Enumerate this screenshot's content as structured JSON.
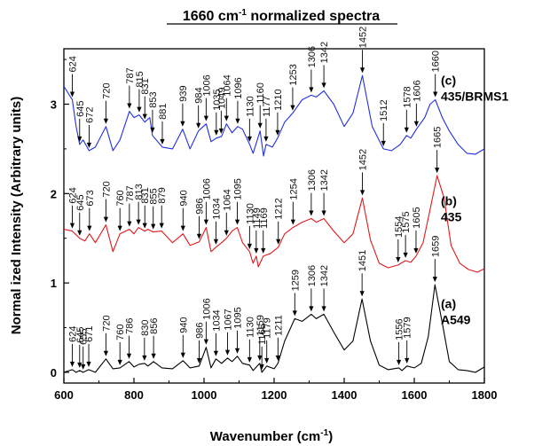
{
  "chart_data": {
    "type": "line",
    "title": "1660 cm⁻¹ normalized spectra",
    "title_parts": {
      "prefix": "1660 cm",
      "sup": "-1",
      "suffix": " normalized spectra"
    },
    "xlabel": "Wavenumber (cm⁻¹)",
    "xlabel_parts": {
      "prefix": "Wavenumber (cm",
      "sup": "-1",
      "suffix": ")"
    },
    "ylabel": "Normal ized Intensity (Arbitrary units)",
    "xlim": [
      600,
      1800
    ],
    "ylim": [
      -0.12,
      3.62
    ],
    "xticks": [
      600,
      800,
      1000,
      1200,
      1400,
      1600,
      1800
    ],
    "yticks": [
      0,
      1,
      2,
      3
    ],
    "grid": false,
    "legend": "none",
    "series": [
      {
        "label_lines": [
          "(a)",
          "A549"
        ],
        "color": "#000000",
        "baseline": 0.0,
        "x": [
          600,
          624,
          635,
          645,
          655,
          671,
          690,
          720,
          740,
          760,
          786,
          800,
          815,
          830,
          840,
          856,
          880,
          910,
          940,
          960,
          986,
          1006,
          1020,
          1034,
          1050,
          1067,
          1080,
          1095,
          1110,
          1130,
          1140,
          1159,
          1165,
          1179,
          1200,
          1211,
          1230,
          1259,
          1280,
          1306,
          1320,
          1342,
          1370,
          1400,
          1425,
          1451,
          1475,
          1500,
          1525,
          1556,
          1565,
          1579,
          1600,
          1620,
          1640,
          1659,
          1680,
          1700,
          1725,
          1750,
          1775,
          1800
        ],
        "y": [
          0.0,
          0.03,
          0.0,
          0.02,
          0.0,
          0.03,
          0.0,
          0.15,
          0.04,
          0.05,
          0.12,
          0.06,
          0.09,
          0.1,
          0.07,
          0.12,
          0.05,
          0.04,
          0.13,
          0.05,
          0.07,
          0.28,
          0.05,
          0.15,
          0.1,
          0.16,
          0.12,
          0.18,
          0.1,
          0.08,
          0.02,
          0.1,
          0.0,
          0.07,
          0.04,
          0.1,
          0.35,
          0.6,
          0.57,
          0.65,
          0.6,
          0.65,
          0.45,
          0.25,
          0.35,
          0.82,
          0.35,
          0.08,
          0.03,
          0.05,
          0.02,
          0.07,
          0.05,
          0.1,
          0.4,
          0.98,
          0.55,
          0.12,
          0.03,
          0.02,
          0.0,
          0.06
        ]
      },
      {
        "label_lines": [
          "(b)",
          "435"
        ],
        "color": "#e0191c",
        "baseline": 1.15,
        "x": [
          600,
          624,
          645,
          660,
          673,
          690,
          720,
          740,
          760,
          787,
          800,
          813,
          831,
          840,
          855,
          879,
          910,
          940,
          960,
          986,
          1006,
          1020,
          1034,
          1050,
          1064,
          1080,
          1095,
          1110,
          1130,
          1140,
          1149,
          1155,
          1169,
          1190,
          1212,
          1230,
          1254,
          1280,
          1306,
          1320,
          1342,
          1370,
          1400,
          1425,
          1452,
          1475,
          1500,
          1525,
          1554,
          1575,
          1590,
          1605,
          1625,
          1645,
          1665,
          1685,
          1705,
          1730,
          1755,
          1780,
          1800
        ],
        "y": [
          1.6,
          1.58,
          1.5,
          1.47,
          1.55,
          1.45,
          1.65,
          1.35,
          1.55,
          1.6,
          1.55,
          1.62,
          1.58,
          1.6,
          1.57,
          1.58,
          1.45,
          1.55,
          1.42,
          1.46,
          1.62,
          1.35,
          1.4,
          1.45,
          1.5,
          1.58,
          1.62,
          1.45,
          1.35,
          1.22,
          1.3,
          1.18,
          1.3,
          1.33,
          1.4,
          1.55,
          1.62,
          1.68,
          1.72,
          1.68,
          1.72,
          1.58,
          1.45,
          1.55,
          1.95,
          1.48,
          1.22,
          1.17,
          1.2,
          1.25,
          1.23,
          1.3,
          1.45,
          1.82,
          2.2,
          1.95,
          1.42,
          1.22,
          1.15,
          1.12,
          1.16
        ]
      },
      {
        "label_lines": [
          "(c)",
          "435/BRMS1"
        ],
        "color": "#2030e0",
        "baseline": 2.5,
        "x": [
          600,
          624,
          635,
          645,
          655,
          672,
          690,
          720,
          740,
          760,
          787,
          800,
          815,
          831,
          845,
          853,
          881,
          910,
          939,
          960,
          984,
          1006,
          1020,
          1035,
          1050,
          1064,
          1080,
          1096,
          1110,
          1130,
          1140,
          1160,
          1170,
          1177,
          1195,
          1210,
          1230,
          1253,
          1280,
          1306,
          1320,
          1342,
          1370,
          1400,
          1425,
          1452,
          1480,
          1512,
          1535,
          1560,
          1578,
          1590,
          1606,
          1630,
          1645,
          1660,
          1680,
          1700,
          1725,
          1750,
          1775,
          1800
        ],
        "y": [
          3.2,
          3.05,
          2.75,
          2.55,
          2.6,
          2.48,
          2.52,
          2.75,
          2.48,
          2.6,
          2.92,
          2.85,
          2.88,
          2.8,
          2.85,
          2.65,
          2.52,
          2.5,
          2.72,
          2.5,
          2.7,
          2.78,
          2.58,
          2.62,
          2.64,
          2.78,
          2.68,
          2.75,
          2.72,
          2.55,
          2.45,
          2.7,
          2.42,
          2.55,
          2.52,
          2.62,
          2.8,
          2.9,
          3.05,
          3.1,
          3.08,
          3.15,
          3.0,
          2.75,
          2.9,
          3.32,
          2.75,
          2.5,
          2.48,
          2.55,
          2.65,
          2.62,
          2.72,
          2.85,
          3.0,
          3.05,
          2.85,
          2.7,
          2.55,
          2.45,
          2.44,
          2.5
        ]
      }
    ],
    "annotations": [
      {
        "series": 0,
        "labels": [
          "624",
          "645",
          "655",
          "671",
          "720",
          "760",
          "786",
          "830",
          "856",
          "940",
          "986",
          "1006",
          "1034",
          "1067",
          "1095",
          "1130",
          "1159",
          "1165",
          "1179",
          "1211",
          "1259",
          "1306",
          "1342",
          "1451",
          "1556",
          "1579",
          "1659"
        ]
      },
      {
        "series": 1,
        "labels": [
          "624",
          "645",
          "673",
          "720",
          "760",
          "787",
          "813",
          "831",
          "855",
          "879",
          "940",
          "986",
          "1006",
          "1034",
          "1064",
          "1095",
          "1130",
          "1149",
          "1169",
          "1212",
          "1254",
          "1306",
          "1342",
          "1452",
          "1554",
          "1575",
          "1605",
          "1665"
        ]
      },
      {
        "series": 2,
        "labels": [
          "624",
          "645",
          "672",
          "720",
          "787",
          "815",
          "831",
          "853",
          "881",
          "939",
          "984",
          "1006",
          "1035",
          "1049",
          "1064",
          "1096",
          "1130",
          "1160",
          "1177",
          "1210",
          "1253",
          "1306",
          "1342",
          "1452",
          "1512",
          "1578",
          "1606",
          "1660"
        ]
      }
    ]
  }
}
